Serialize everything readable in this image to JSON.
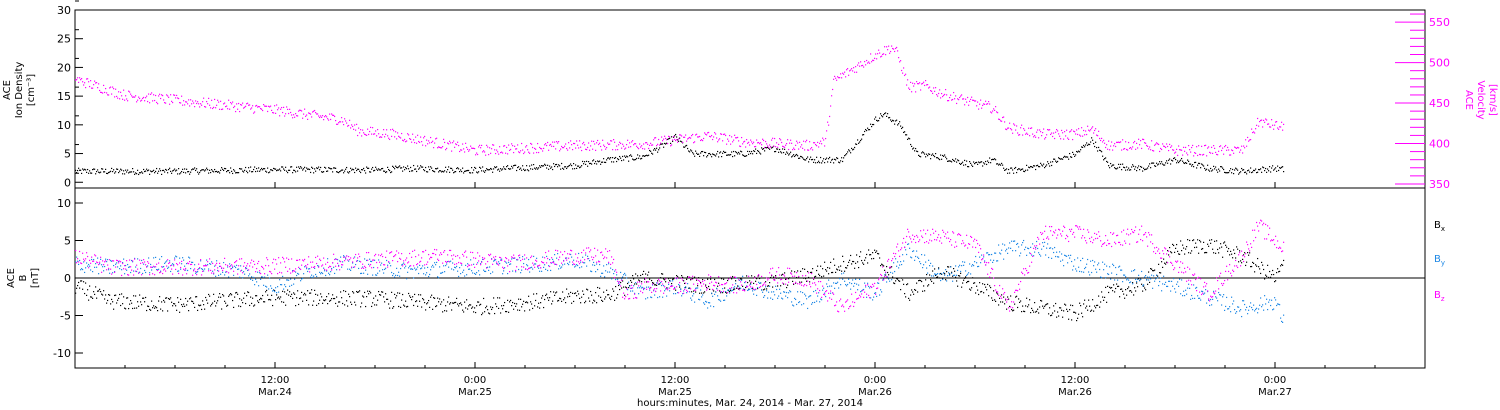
{
  "colors": {
    "black": "#000000",
    "magenta": "#ff00ff",
    "blue": "#1e88e5"
  },
  "x_axis": {
    "label": "hours:minutes, Mar. 24, 2014 - Mar. 27, 2014",
    "ticks": [
      {
        "t": 12,
        "time": "12:00",
        "date": "Mar.24"
      },
      {
        "t": 24,
        "time": "0:00",
        "date": "Mar.25"
      },
      {
        "t": 36,
        "time": "12:00",
        "date": "Mar.25"
      },
      {
        "t": 48,
        "time": "0:00",
        "date": "Mar.26"
      },
      {
        "t": 60,
        "time": "12:00",
        "date": "Mar.26"
      },
      {
        "t": 72,
        "time": "0:00",
        "date": "Mar.27"
      }
    ]
  },
  "chart_data": [
    {
      "type": "scatter",
      "panel": "top",
      "xlim_hours": [
        0,
        81
      ],
      "left_axis": {
        "label_lines": [
          "ACE",
          "Ion Density",
          "[cm⁻³]"
        ],
        "ylim": [
          -1,
          30
        ],
        "ticks": [
          0,
          5,
          10,
          15,
          20,
          25,
          30
        ]
      },
      "right_axis": {
        "label_lines": [
          "ACE",
          "Velocity",
          "[km/s]"
        ],
        "ylim": [
          345,
          565
        ],
        "ticks": [
          350,
          400,
          450,
          500,
          550
        ]
      },
      "series": [
        {
          "axis": "left",
          "color": "black",
          "knots": [
            [
              0,
              2
            ],
            [
              6,
              2
            ],
            [
              12,
              2.3
            ],
            [
              18,
              2.2
            ],
            [
              20,
              2.5
            ],
            [
              24,
              2.2
            ],
            [
              26,
              2.5
            ],
            [
              30,
              3
            ],
            [
              32,
              4
            ],
            [
              34,
              4.5
            ],
            [
              35,
              6
            ],
            [
              36,
              8
            ],
            [
              37,
              5
            ],
            [
              40,
              5
            ],
            [
              42,
              6
            ],
            [
              44,
              4
            ],
            [
              46,
              4
            ],
            [
              48,
              11
            ],
            [
              48.5,
              12
            ],
            [
              49.5,
              10
            ],
            [
              50.5,
              5
            ],
            [
              52,
              4.5
            ],
            [
              54,
              3
            ],
            [
              55,
              4
            ],
            [
              56,
              2
            ],
            [
              58,
              3
            ],
            [
              60,
              5
            ],
            [
              61,
              7.5
            ],
            [
              62,
              3
            ],
            [
              64,
              2.5
            ],
            [
              66,
              4
            ],
            [
              68,
              2.5
            ],
            [
              70,
              2
            ],
            [
              72,
              2.5
            ],
            [
              72.5,
              2.3
            ]
          ]
        },
        {
          "axis": "right",
          "color": "magenta",
          "knots": [
            [
              0,
              480
            ],
            [
              3,
              460
            ],
            [
              8,
              450
            ],
            [
              12,
              442
            ],
            [
              16,
              430
            ],
            [
              17,
              416
            ],
            [
              19,
              412
            ],
            [
              24,
              392
            ],
            [
              26,
              394
            ],
            [
              30,
              398
            ],
            [
              34,
              400
            ],
            [
              38,
              410
            ],
            [
              40,
              403
            ],
            [
              44,
              398
            ],
            [
              45,
              403
            ],
            [
              45.5,
              478
            ],
            [
              47,
              497
            ],
            [
              48,
              510
            ],
            [
              49,
              520
            ],
            [
              49.3,
              512
            ],
            [
              50,
              470
            ],
            [
              51,
              472
            ],
            [
              52,
              462
            ],
            [
              54,
              450
            ],
            [
              55,
              445
            ],
            [
              56,
              420
            ],
            [
              58,
              412
            ],
            [
              60,
              412
            ],
            [
              61,
              418
            ],
            [
              62,
              398
            ],
            [
              64,
              400
            ],
            [
              66,
              392
            ],
            [
              70,
              392
            ],
            [
              71,
              428
            ],
            [
              72.5,
              420
            ]
          ]
        }
      ]
    },
    {
      "type": "scatter",
      "panel": "bottom",
      "xlim_hours": [
        0,
        81
      ],
      "left_axis": {
        "label_lines": [
          "ACE",
          "B",
          "[nT]"
        ],
        "ylim": [
          -12,
          12
        ],
        "ticks": [
          -10,
          -5,
          0,
          5,
          10
        ]
      },
      "zero_line": 0,
      "legend": [
        {
          "label": "B",
          "sub": "x",
          "color": "black"
        },
        {
          "label": "B",
          "sub": "y",
          "color": "blue"
        },
        {
          "label": "B",
          "sub": "z",
          "color": "magenta"
        }
      ],
      "series": [
        {
          "name": "Bx",
          "color": "black",
          "knots": [
            [
              0,
              -1
            ],
            [
              2,
              -3
            ],
            [
              6,
              -3.5
            ],
            [
              12,
              -2.5
            ],
            [
              18,
              -2.7
            ],
            [
              24,
              -3.8
            ],
            [
              28,
              -3
            ],
            [
              30,
              -2.3
            ],
            [
              32,
              -2.2
            ],
            [
              34,
              0
            ],
            [
              38,
              -1
            ],
            [
              42,
              -0.5
            ],
            [
              44,
              0.5
            ],
            [
              46,
              2
            ],
            [
              48,
              3
            ],
            [
              50,
              -2
            ],
            [
              52,
              1
            ],
            [
              54,
              -1
            ],
            [
              56,
              -3.2
            ],
            [
              58,
              -4
            ],
            [
              60,
              -4.7
            ],
            [
              62,
              -2
            ],
            [
              64,
              -1
            ],
            [
              66,
              4
            ],
            [
              68,
              4.5
            ],
            [
              70,
              3
            ],
            [
              72,
              0
            ],
            [
              72.5,
              2
            ]
          ]
        },
        {
          "name": "By",
          "color": "blue",
          "knots": [
            [
              0,
              2
            ],
            [
              2,
              1.5
            ],
            [
              6,
              2
            ],
            [
              10,
              1
            ],
            [
              12,
              -1
            ],
            [
              14,
              1
            ],
            [
              16,
              2
            ],
            [
              20,
              1
            ],
            [
              24,
              1.5
            ],
            [
              28,
              2
            ],
            [
              30,
              2.5
            ],
            [
              32,
              1
            ],
            [
              34,
              -2
            ],
            [
              36,
              -1
            ],
            [
              38,
              -3
            ],
            [
              40,
              -0.5
            ],
            [
              42,
              -2
            ],
            [
              44,
              -3
            ],
            [
              46,
              0
            ],
            [
              48,
              -2
            ],
            [
              50,
              4
            ],
            [
              52,
              0
            ],
            [
              54,
              2
            ],
            [
              56,
              4
            ],
            [
              58,
              4
            ],
            [
              60,
              2
            ],
            [
              62,
              1
            ],
            [
              66,
              -1
            ],
            [
              70,
              -4
            ],
            [
              72,
              -3
            ],
            [
              72.5,
              -6
            ]
          ]
        },
        {
          "name": "Bz",
          "color": "magenta",
          "knots": [
            [
              0,
              3
            ],
            [
              2,
              1.5
            ],
            [
              6,
              1.5
            ],
            [
              12,
              1.7
            ],
            [
              18,
              2.5
            ],
            [
              22,
              3
            ],
            [
              26,
              2
            ],
            [
              28,
              2.5
            ],
            [
              30,
              3
            ],
            [
              32,
              3
            ],
            [
              33,
              -2.5
            ],
            [
              34,
              -1
            ],
            [
              36,
              -1
            ],
            [
              38,
              -0.5
            ],
            [
              40,
              -1
            ],
            [
              42,
              0.5
            ],
            [
              44,
              0
            ],
            [
              46,
              -4
            ],
            [
              48,
              -1
            ],
            [
              50,
              6
            ],
            [
              52,
              5.5
            ],
            [
              54,
              4.5
            ],
            [
              56,
              -4
            ],
            [
              58,
              6
            ],
            [
              60,
              6
            ],
            [
              62,
              5
            ],
            [
              64,
              6
            ],
            [
              66,
              2
            ],
            [
              68,
              -2
            ],
            [
              70,
              3
            ],
            [
              71,
              7
            ],
            [
              72.5,
              4
            ]
          ]
        }
      ]
    }
  ]
}
